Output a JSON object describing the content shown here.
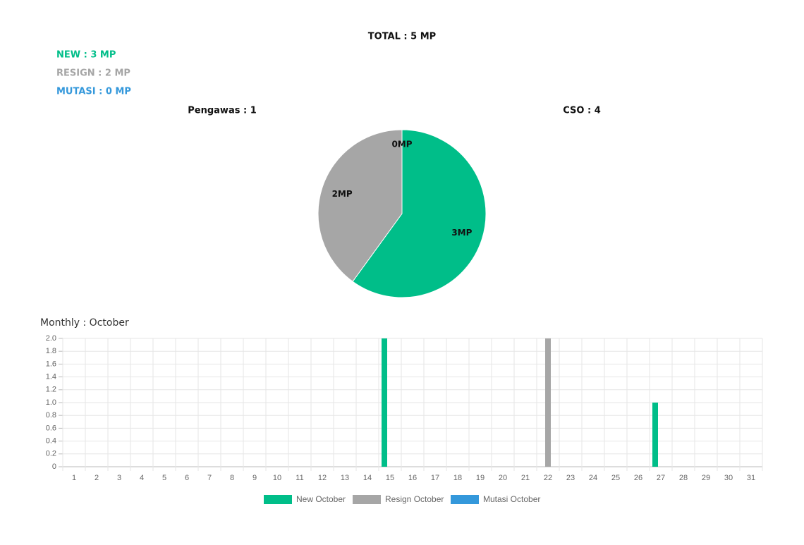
{
  "header": {
    "total": "TOTAL : 5 MP",
    "new": "NEW : 3 MP",
    "resign": "RESIGN : 2 MP",
    "mutasi": "MUTASI : 0 MP",
    "pengawas": "Pengawas : 1",
    "cso": "CSO : 4"
  },
  "chart_data": [
    {
      "type": "pie",
      "values": [
        3,
        2,
        0
      ],
      "value_labels": [
        "3MP",
        "2MP",
        "0MP"
      ],
      "colors": [
        "#00be89",
        "#a6a6a6",
        "#3498db"
      ]
    },
    {
      "type": "bar",
      "title": "Monthly : October",
      "categories": [
        "1",
        "2",
        "3",
        "4",
        "5",
        "6",
        "7",
        "8",
        "9",
        "10",
        "11",
        "12",
        "13",
        "14",
        "15",
        "16",
        "17",
        "18",
        "19",
        "20",
        "21",
        "22",
        "23",
        "24",
        "25",
        "26",
        "27",
        "28",
        "29",
        "30",
        "31"
      ],
      "series": [
        {
          "name": "New October",
          "color": "#00be89",
          "values": [
            0,
            0,
            0,
            0,
            0,
            0,
            0,
            0,
            0,
            0,
            0,
            0,
            0,
            0,
            2,
            0,
            0,
            0,
            0,
            0,
            0,
            0,
            0,
            0,
            0,
            0,
            1,
            0,
            0,
            0,
            0
          ]
        },
        {
          "name": "Resign October",
          "color": "#a6a6a6",
          "values": [
            0,
            0,
            0,
            0,
            0,
            0,
            0,
            0,
            0,
            0,
            0,
            0,
            0,
            0,
            0,
            0,
            0,
            0,
            0,
            0,
            0,
            2,
            0,
            0,
            0,
            0,
            0,
            0,
            0,
            0,
            0
          ]
        },
        {
          "name": "Mutasi October",
          "color": "#3498db",
          "values": [
            0,
            0,
            0,
            0,
            0,
            0,
            0,
            0,
            0,
            0,
            0,
            0,
            0,
            0,
            0,
            0,
            0,
            0,
            0,
            0,
            0,
            0,
            0,
            0,
            0,
            0,
            0,
            0,
            0,
            0,
            0
          ]
        }
      ],
      "ylim": [
        0,
        2
      ],
      "yticks": [
        0,
        {
          "value": 0.2,
          "label": "0.2"
        },
        {
          "value": 0.4,
          "label": "0.4"
        },
        {
          "value": 0.6,
          "label": "0.6"
        },
        {
          "value": 0.8,
          "label": "0.8"
        },
        {
          "value": 1,
          "label": "1.0"
        },
        {
          "value": 1.2,
          "label": "1.2"
        },
        {
          "value": 1.4,
          "label": "1.4"
        },
        {
          "value": 1.6,
          "label": "1.6"
        },
        {
          "value": 1.8,
          "label": "1.8"
        },
        {
          "value": 2,
          "label": "2.0"
        }
      ],
      "grid": true,
      "legend": "bottom"
    }
  ]
}
